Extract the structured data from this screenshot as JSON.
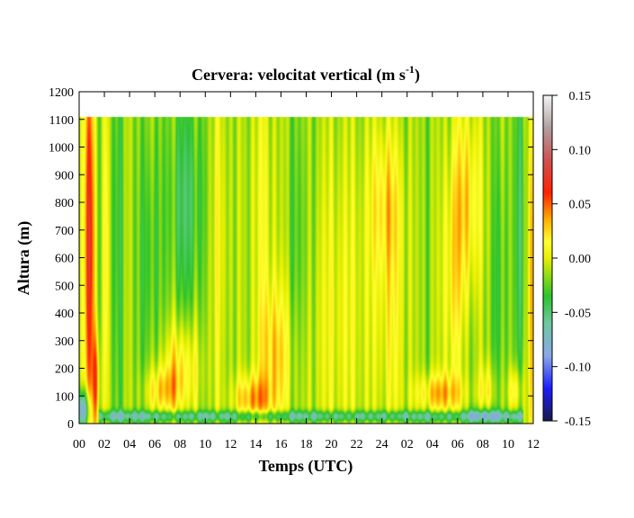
{
  "chart_data": {
    "type": "heatmap",
    "title": {
      "main": "Cervera: velocitat vertical (m s",
      "sup": "-1",
      "close": ")"
    },
    "xlabel": "Temps (UTC)",
    "ylabel": "Altura (m)",
    "x_ticks": [
      "00",
      "02",
      "04",
      "06",
      "08",
      "10",
      "12",
      "14",
      "16",
      "18",
      "20",
      "22",
      "24",
      "02",
      "04",
      "06",
      "08",
      "10",
      "12"
    ],
    "x_range_hours": [
      0,
      36
    ],
    "y_ticks": [
      0,
      100,
      200,
      300,
      400,
      500,
      600,
      700,
      800,
      900,
      1000,
      1100,
      1200
    ],
    "y_range": [
      0,
      1200
    ],
    "data_top": 1110,
    "colorbar": {
      "ticks": [
        "0.15",
        "0.10",
        "0.05",
        "0.00",
        "-0.05",
        "-0.10",
        "-0.15"
      ],
      "range": [
        -0.15,
        0.15
      ],
      "stops": [
        {
          "v": -0.15,
          "color": "#1a1a4a"
        },
        {
          "v": -0.12,
          "color": "#1c1cff"
        },
        {
          "v": -0.09,
          "color": "#8aa8e8"
        },
        {
          "v": -0.06,
          "color": "#6ec8a0"
        },
        {
          "v": -0.035,
          "color": "#2bc42b"
        },
        {
          "v": 0.0,
          "color": "#e8f000"
        },
        {
          "v": 0.015,
          "color": "#ffff30"
        },
        {
          "v": 0.035,
          "color": "#ffb000"
        },
        {
          "v": 0.06,
          "color": "#ff2200"
        },
        {
          "v": 0.09,
          "color": "#d05050"
        },
        {
          "v": 0.12,
          "color": "#b0a0a0"
        },
        {
          "v": 0.15,
          "color": "#f4f4f4"
        }
      ]
    },
    "background_w": -0.015,
    "features": [
      {
        "t": 0.3,
        "z": 50,
        "sx": 0.35,
        "sz": 50,
        "w": -0.09
      },
      {
        "t": 0.8,
        "z": 650,
        "sx": 0.3,
        "sz": 550,
        "w": 0.09
      },
      {
        "t": 1.3,
        "z": 150,
        "sx": 0.2,
        "sz": 130,
        "w": 0.06
      },
      {
        "t": 2.1,
        "z": 600,
        "sx": 0.15,
        "sz": 500,
        "w": 0.03
      },
      {
        "t": 6.5,
        "z": 120,
        "sx": 0.9,
        "sz": 60,
        "w": 0.04
      },
      {
        "t": 8.0,
        "z": 200,
        "sx": 1.0,
        "sz": 120,
        "w": 0.04
      },
      {
        "t": 11.0,
        "z": 700,
        "sx": 0.6,
        "sz": 500,
        "w": 0.02
      },
      {
        "t": 13.7,
        "z": 90,
        "sx": 1.0,
        "sz": 60,
        "w": 0.05
      },
      {
        "t": 15.5,
        "z": 250,
        "sx": 0.9,
        "sz": 180,
        "w": 0.04
      },
      {
        "t": 14.5,
        "z": 800,
        "sx": 0.8,
        "sz": 400,
        "w": 0.02
      },
      {
        "t": 20.5,
        "z": 400,
        "sx": 2.5,
        "sz": 500,
        "w": 0.02
      },
      {
        "t": 24.3,
        "z": 800,
        "sx": 0.9,
        "sz": 200,
        "w": 0.035
      },
      {
        "t": 24.8,
        "z": 350,
        "sx": 0.8,
        "sz": 300,
        "w": 0.02
      },
      {
        "t": 28.5,
        "z": 110,
        "sx": 1.3,
        "sz": 50,
        "w": 0.045
      },
      {
        "t": 29.5,
        "z": 500,
        "sx": 0.6,
        "sz": 350,
        "w": 0.03
      },
      {
        "t": 30.7,
        "z": 800,
        "sx": 0.8,
        "sz": 250,
        "w": 0.04
      },
      {
        "t": 32.3,
        "z": 120,
        "sx": 0.5,
        "sz": 70,
        "w": 0.03
      },
      {
        "t": 34.5,
        "z": 120,
        "sx": 0.4,
        "sz": 60,
        "w": 0.04
      },
      {
        "t": 35.8,
        "z": 500,
        "sx": 0.2,
        "sz": 600,
        "w": 0.05
      },
      {
        "t": 35.0,
        "z": 700,
        "sx": 0.3,
        "sz": 500,
        "w": -0.03
      },
      {
        "t": 8.5,
        "z": 800,
        "sx": 1.0,
        "sz": 300,
        "w": -0.03
      },
      {
        "t": 5.5,
        "z": 600,
        "sx": 0.6,
        "sz": 350,
        "w": -0.02
      },
      {
        "t": 17.5,
        "z": 600,
        "sx": 0.8,
        "sz": 400,
        "w": -0.02
      },
      {
        "t": 33.3,
        "z": 500,
        "sx": 0.4,
        "sz": 400,
        "w": -0.02
      },
      {
        "t": 3.0,
        "z": 700,
        "sx": 0.3,
        "sz": 500,
        "w": -0.02
      }
    ],
    "surface_band": {
      "z": 28,
      "sz": 14,
      "w": -0.05
    },
    "surface_patches": [
      {
        "t": 32.0,
        "z": 30,
        "sx": 0.8,
        "sz": 25,
        "w": -0.03
      }
    ]
  }
}
